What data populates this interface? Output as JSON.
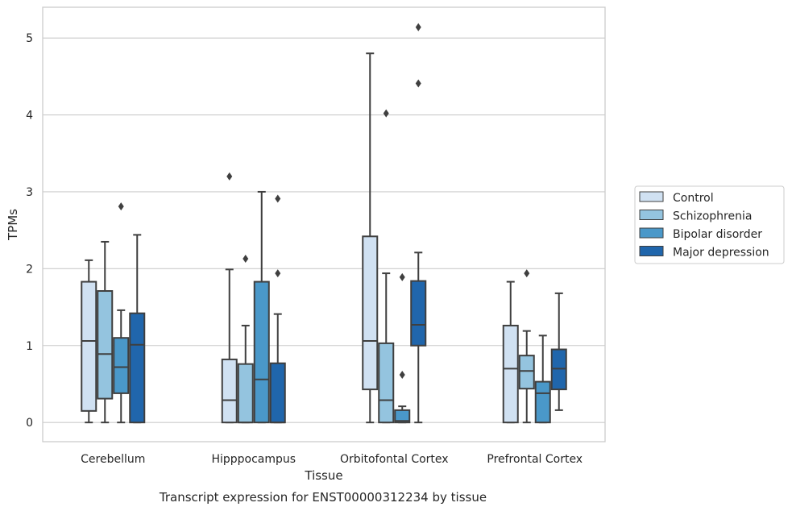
{
  "chart_data": {
    "type": "box",
    "title": "",
    "caption": "Transcript expression for ENST00000312234 by tissue",
    "xlabel": "Tissue",
    "ylabel": "TPMs",
    "ylim": [
      -0.25,
      5.4
    ],
    "yticks": [
      0,
      1,
      2,
      3,
      4,
      5
    ],
    "grid": "horizontal",
    "legend_position": "right",
    "categories": [
      "Cerebellum",
      "Hipppocampus",
      "Orbitofontal Cortex",
      "Prefrontal Cortex"
    ],
    "series": [
      {
        "name": "Control",
        "color": "#d0e1f2",
        "boxes": [
          {
            "whislo": 0,
            "q1": 0.15,
            "med": 1.06,
            "q3": 1.83,
            "whishi": 2.11,
            "fliers": []
          },
          {
            "whislo": 0,
            "q1": 0,
            "med": 0.29,
            "q3": 0.82,
            "whishi": 1.99,
            "fliers": [
              3.2
            ]
          },
          {
            "whislo": 0,
            "q1": 0.43,
            "med": 1.06,
            "q3": 2.42,
            "whishi": 4.8,
            "fliers": []
          },
          {
            "whislo": 0,
            "q1": 0,
            "med": 0.7,
            "q3": 1.26,
            "whishi": 1.83,
            "fliers": []
          }
        ]
      },
      {
        "name": "Schizophrenia",
        "color": "#94c4df",
        "boxes": [
          {
            "whislo": 0,
            "q1": 0.31,
            "med": 0.89,
            "q3": 1.71,
            "whishi": 2.35,
            "fliers": []
          },
          {
            "whislo": 0,
            "q1": 0,
            "med": 0,
            "q3": 0.76,
            "whishi": 1.26,
            "fliers": [
              2.13
            ]
          },
          {
            "whislo": 0,
            "q1": 0,
            "med": 0.29,
            "q3": 1.03,
            "whishi": 1.94,
            "fliers": [
              4.02
            ]
          },
          {
            "whislo": 0,
            "q1": 0.44,
            "med": 0.67,
            "q3": 0.87,
            "whishi": 1.19,
            "fliers": [
              1.94
            ]
          }
        ]
      },
      {
        "name": "Bipolar disorder",
        "color": "#4a98c9",
        "boxes": [
          {
            "whislo": 0,
            "q1": 0.38,
            "med": 0.72,
            "q3": 1.1,
            "whishi": 1.46,
            "fliers": [
              2.81
            ]
          },
          {
            "whislo": 0,
            "q1": 0,
            "med": 0.56,
            "q3": 1.83,
            "whishi": 3.0,
            "fliers": []
          },
          {
            "whislo": 0,
            "q1": 0,
            "med": 0.02,
            "q3": 0.16,
            "whishi": 0.21,
            "fliers": [
              0.62,
              1.89
            ]
          },
          {
            "whislo": 0,
            "q1": 0,
            "med": 0.38,
            "q3": 0.53,
            "whishi": 1.13,
            "fliers": []
          }
        ]
      },
      {
        "name": "Major depression",
        "color": "#2066ac",
        "boxes": [
          {
            "whislo": 0,
            "q1": 0,
            "med": 1.01,
            "q3": 1.42,
            "whishi": 2.44,
            "fliers": []
          },
          {
            "whislo": 0,
            "q1": 0,
            "med": 0,
            "q3": 0.77,
            "whishi": 1.41,
            "fliers": [
              1.94,
              2.91
            ]
          },
          {
            "whislo": 0,
            "q1": 1.0,
            "med": 1.27,
            "q3": 1.84,
            "whishi": 2.21,
            "fliers": [
              4.41,
              5.14
            ]
          },
          {
            "whislo": 0.16,
            "q1": 0.43,
            "med": 0.7,
            "q3": 0.95,
            "whishi": 1.68,
            "fliers": []
          }
        ]
      }
    ]
  }
}
